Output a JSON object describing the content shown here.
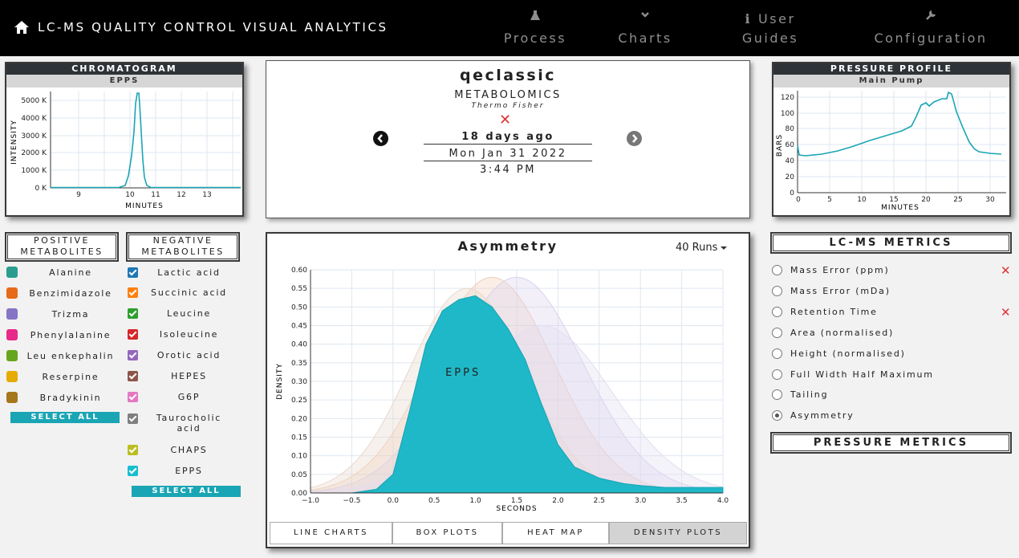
{
  "header": {
    "title": "LC-MS QUALITY CONTROL VISUAL ANALYTICS",
    "nav": [
      {
        "label1": "",
        "label2": "Process",
        "icon": "flask-icon"
      },
      {
        "label1": "",
        "label2": "Charts",
        "icon": "chevron-down-icon"
      },
      {
        "label1": "User",
        "label2": "Guides",
        "icon": "info-icon"
      },
      {
        "label1": "",
        "label2": "Configuration",
        "icon": "wrench-icon"
      }
    ]
  },
  "chromatogram": {
    "title": "CHROMATOGRAM",
    "subtitle": "EPPS",
    "ylabel": "INTENSITY",
    "xlabel": "MINUTES",
    "yticks": [
      "5000 K",
      "4000 K",
      "3000 K",
      "2000 K",
      "1000 K",
      "0 K"
    ],
    "xticks": [
      "9",
      "10",
      "11",
      "12",
      "13"
    ]
  },
  "instrument": {
    "name": "qeclassic",
    "type": "METABOLOMICS",
    "vendor": "Thermo Fisher",
    "status_icon": "close-icon",
    "ago": "18 days ago",
    "date": "Mon Jan 31 2022",
    "time": "3:44 PM"
  },
  "pressure": {
    "title": "PRESSURE PROFILE",
    "subtitle": "Main Pump",
    "ylabel": "BARS",
    "xlabel": "MINUTES",
    "yticks": [
      "120",
      "100",
      "80",
      "60",
      "40",
      "20",
      "0"
    ],
    "xticks": [
      "0",
      "5",
      "10",
      "15",
      "20",
      "25",
      "30"
    ]
  },
  "positive": {
    "title1": "POSITIVE",
    "title2": "METABOLITES",
    "items": [
      {
        "label": "Alanine",
        "color": "#2a9d8f"
      },
      {
        "label": "Benzimidazole",
        "color": "#e66a1a"
      },
      {
        "label": "Trizma",
        "color": "#8575c4"
      },
      {
        "label": "Phenylalanine",
        "color": "#e7298a"
      },
      {
        "label": "Leu enkephalin",
        "color": "#66a61e"
      },
      {
        "label": "Reserpine",
        "color": "#e6ab02"
      },
      {
        "label": "Bradykinin",
        "color": "#a6761d"
      }
    ],
    "select_all": "SELECT ALL"
  },
  "negative": {
    "title1": "NEGATIVE",
    "title2": "METABOLITES",
    "items": [
      {
        "label": "Lactic acid",
        "color": "#1f77b4"
      },
      {
        "label": "Succinic acid",
        "color": "#ff7f0e"
      },
      {
        "label": "Leucine",
        "color": "#2ca02c"
      },
      {
        "label": "Isoleucine",
        "color": "#d62728"
      },
      {
        "label": "Orotic acid",
        "color": "#9467bd"
      },
      {
        "label": "HEPES",
        "color": "#8c564b"
      },
      {
        "label": "G6P",
        "color": "#e377c2"
      },
      {
        "label": "Taurocholic",
        "label2": "acid",
        "color": "#7f7f7f"
      },
      {
        "label": "CHAPS",
        "color": "#bcbd22"
      },
      {
        "label": "EPPS",
        "color": "#17becf"
      }
    ],
    "select_all": "SELECT ALL"
  },
  "main_chart": {
    "runs": "40 Runs",
    "tabs": [
      "LINE CHARTS",
      "BOX PLOTS",
      "HEAT MAP",
      "DENSITY PLOTS"
    ]
  },
  "chart_data": {
    "type": "area",
    "title": "Asymmetry",
    "xlabel": "SECONDS",
    "ylabel": "DENSITY",
    "xlim": [
      -1.0,
      4.0
    ],
    "ylim": [
      0,
      0.6
    ],
    "xticks": [
      "−1.0",
      "−0.5",
      "0.0",
      "0.5",
      "1.0",
      "1.5",
      "2.0",
      "2.5",
      "3.0",
      "3.5",
      "4.0"
    ],
    "yticks": [
      "0.00",
      "0.05",
      "0.10",
      "0.15",
      "0.20",
      "0.25",
      "0.30",
      "0.35",
      "0.40",
      "0.45",
      "0.50",
      "0.55",
      "0.60"
    ],
    "annotation": "EPPS",
    "series": [
      {
        "name": "EPPS",
        "color": "#1fb8c8",
        "x": [
          -0.5,
          -0.2,
          0.0,
          0.2,
          0.4,
          0.6,
          0.8,
          1.0,
          1.2,
          1.4,
          1.6,
          1.8,
          2.0,
          2.2,
          2.5,
          2.8,
          3.0,
          3.3,
          3.6,
          4.0
        ],
        "y": [
          0.0,
          0.01,
          0.05,
          0.22,
          0.4,
          0.49,
          0.52,
          0.53,
          0.5,
          0.44,
          0.36,
          0.24,
          0.13,
          0.07,
          0.04,
          0.025,
          0.02,
          0.015,
          0.015,
          0.015
        ]
      }
    ]
  },
  "lcms_metrics": {
    "title": "LC-MS METRICS",
    "items": [
      {
        "label": "Mass Error (ppm)",
        "selected": false,
        "flag": true
      },
      {
        "label": "Mass Error (mDa)",
        "selected": false,
        "flag": false
      },
      {
        "label": "Retention Time",
        "selected": false,
        "flag": true
      },
      {
        "label": "Area (normalised)",
        "selected": false,
        "flag": false
      },
      {
        "label": "Height (normalised)",
        "selected": false,
        "flag": false
      },
      {
        "label": "Full Width Half Maximum",
        "selected": false,
        "flag": false
      },
      {
        "label": "Tailing",
        "selected": false,
        "flag": false
      },
      {
        "label": "Asymmetry",
        "selected": true,
        "flag": false
      }
    ]
  },
  "pressure_metrics": {
    "title": "PRESSURE METRICS"
  }
}
